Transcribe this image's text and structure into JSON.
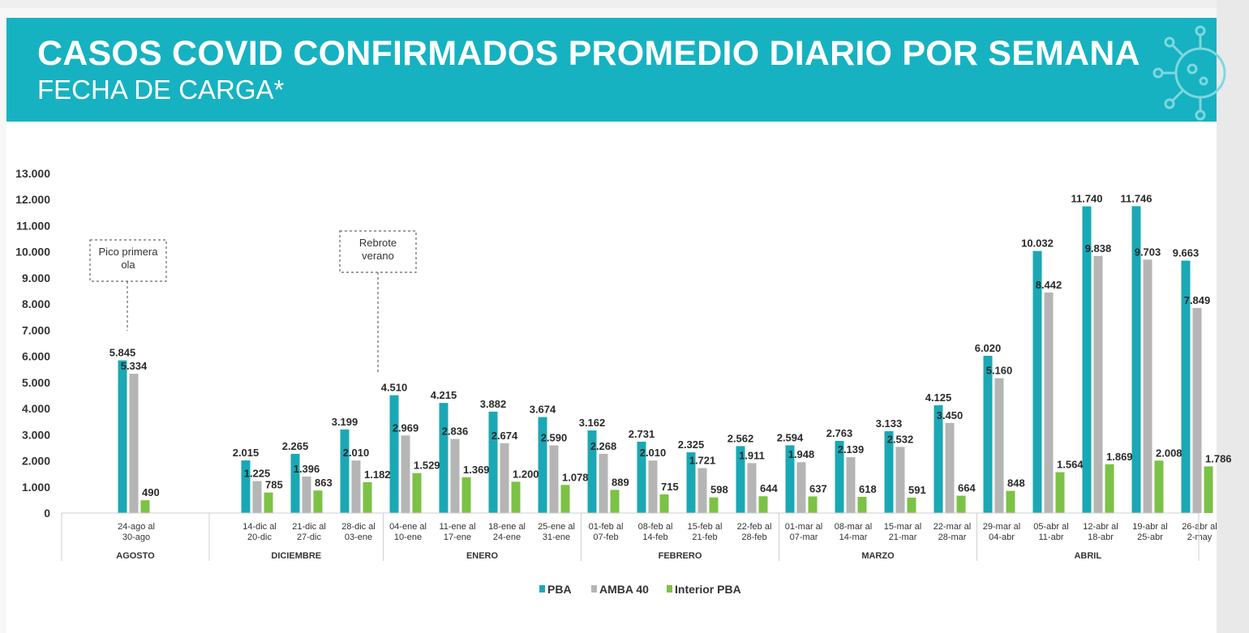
{
  "header": {
    "title": "CASOS COVID CONFIRMADOS PROMEDIO DIARIO POR SEMANA",
    "subtitle": "FECHA DE CARGA*",
    "background_color": "#16b2c1",
    "decoration_icon": "virus-icon"
  },
  "chart_data": {
    "type": "bar",
    "ylim": [
      0,
      13000
    ],
    "yticks": [
      "0",
      "1.000",
      "2.000",
      "3.000",
      "4.000",
      "5.000",
      "6.000",
      "7.000",
      "8.000",
      "9.000",
      "10.000",
      "11.000",
      "12.000",
      "13.000"
    ],
    "categories": [
      [
        "24-ago al",
        "30-ago"
      ],
      [
        "14-dic al",
        "20-dic"
      ],
      [
        "21-dic al",
        "27-dic"
      ],
      [
        "28-dic al",
        "03-ene"
      ],
      [
        "04-ene al",
        "10-ene"
      ],
      [
        "11-ene al",
        "17-ene"
      ],
      [
        "18-ene al",
        "24-ene"
      ],
      [
        "25-ene al",
        "31-ene"
      ],
      [
        "01-feb al",
        "07-feb"
      ],
      [
        "08-feb al",
        "14-feb"
      ],
      [
        "15-feb al",
        "21-feb"
      ],
      [
        "22-feb al",
        "28-feb"
      ],
      [
        "01-mar al",
        "07-mar"
      ],
      [
        "08-mar al",
        "14-mar"
      ],
      [
        "15-mar al",
        "21-mar"
      ],
      [
        "22-mar al",
        "28-mar"
      ],
      [
        "29-mar al",
        "04-abr"
      ],
      [
        "05-abr al",
        "11-abr"
      ],
      [
        "12-abr al",
        "18-abr"
      ],
      [
        "19-abr al",
        "25-abr"
      ],
      [
        "26-abr al",
        "2-may"
      ]
    ],
    "months": [
      {
        "name": "AGOSTO",
        "from": 0,
        "to": 0
      },
      {
        "name": "DICIEMBRE",
        "from": 1,
        "to": 3
      },
      {
        "name": "ENERO",
        "from": 4,
        "to": 7
      },
      {
        "name": "FEBRERO",
        "from": 8,
        "to": 11
      },
      {
        "name": "MARZO",
        "from": 12,
        "to": 15
      },
      {
        "name": "ABRIL",
        "from": 16,
        "to": 20
      }
    ],
    "series": [
      {
        "name": "PBA",
        "color": "#1aa8b5",
        "values": [
          5845,
          2015,
          2265,
          3199,
          4510,
          4215,
          3882,
          3674,
          3162,
          2731,
          2325,
          2562,
          2594,
          2763,
          3133,
          4125,
          6020,
          10032,
          11740,
          11746,
          9663
        ],
        "labels": [
          "5.845",
          "2.015",
          "2.265",
          "3.199",
          "4.510",
          "4.215",
          "3.882",
          "3.674",
          "3.162",
          "2.731",
          "2.325",
          "2.562",
          "2.594",
          "2.763",
          "3.133",
          "4.125",
          "6.020",
          "10.032",
          "11.740",
          "11.746",
          "9.663"
        ]
      },
      {
        "name": "AMBA 40",
        "color": "#b5b5b5",
        "values": [
          5334,
          1225,
          1396,
          2010,
          2969,
          2836,
          2674,
          2590,
          2268,
          2010,
          1721,
          1911,
          1948,
          2139,
          2532,
          3450,
          5160,
          8442,
          9838,
          9703,
          7849
        ],
        "labels": [
          "5.334",
          "1.225",
          "1.396",
          "2.010",
          "2.969",
          "2.836",
          "2.674",
          "2.590",
          "2.268",
          "2.010",
          "1.721",
          "1.911",
          "1.948",
          "2.139",
          "2.532",
          "3.450",
          "5.160",
          "8.442",
          "9.838",
          "9.703",
          "7.849"
        ]
      },
      {
        "name": "Interior PBA",
        "color": "#7cc246",
        "values": [
          490,
          785,
          863,
          1182,
          1529,
          1369,
          1200,
          1078,
          889,
          715,
          598,
          644,
          637,
          618,
          591,
          664,
          848,
          1564,
          1869,
          2008,
          1786
        ],
        "labels": [
          "490",
          "785",
          "863",
          "1.182",
          "1.529",
          "1.369",
          "1.200",
          "1.078",
          "889",
          "715",
          "598",
          "644",
          "637",
          "618",
          "591",
          "664",
          "848",
          "1.564",
          "1.869",
          "2.008",
          "1.786"
        ]
      }
    ],
    "annotations": [
      {
        "lines": [
          "Pico primera",
          "ola"
        ],
        "category": 0
      },
      {
        "lines": [
          "Rebrote",
          "verano"
        ],
        "category": 4
      }
    ],
    "legend": {
      "placement": "bottom-center"
    }
  }
}
